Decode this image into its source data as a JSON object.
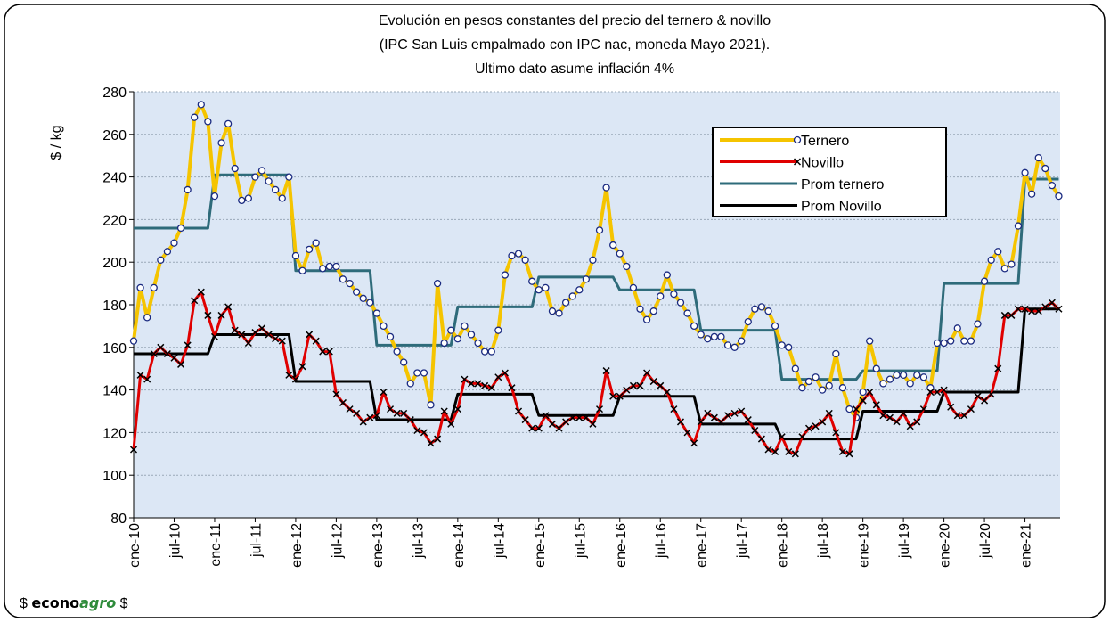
{
  "chart_data": {
    "type": "line",
    "title": "Evolución en pesos constantes del precio del ternero & novillo",
    "subtitle": [
      "(IPC San Luis empalmado con IPC nac, moneda Mayo 2021).",
      "Ultimo dato asume inflación 4%"
    ],
    "y_label": "$ / kg",
    "logo": {
      "prefix": "$",
      "brand": "econo",
      "accent": "agro",
      "suffix": "$"
    },
    "legend": "upper right",
    "ylim": [
      80,
      280
    ],
    "yticks": [
      80,
      100,
      120,
      140,
      160,
      180,
      200,
      220,
      240,
      260,
      280
    ],
    "grid": true,
    "categories": [
      "ene-10",
      null,
      null,
      null,
      null,
      null,
      "jul-10",
      null,
      null,
      null,
      null,
      null,
      "ene-11",
      null,
      null,
      null,
      null,
      null,
      "jul-11",
      null,
      null,
      null,
      null,
      null,
      "ene-12",
      null,
      null,
      null,
      null,
      null,
      "jul-12",
      null,
      null,
      null,
      null,
      null,
      "ene-13",
      null,
      null,
      null,
      null,
      null,
      "jul-13",
      null,
      null,
      null,
      null,
      null,
      "ene-14",
      null,
      null,
      null,
      null,
      null,
      "jul-14",
      null,
      null,
      null,
      null,
      null,
      "ene-15",
      null,
      null,
      null,
      null,
      null,
      "jul-15",
      null,
      null,
      null,
      null,
      null,
      "ene-16",
      null,
      null,
      null,
      null,
      null,
      "jul-16",
      null,
      null,
      null,
      null,
      null,
      "ene-17",
      null,
      null,
      null,
      null,
      null,
      "jul-17",
      null,
      null,
      null,
      null,
      null,
      "ene-18",
      null,
      null,
      null,
      null,
      null,
      "jul-18",
      null,
      null,
      null,
      null,
      null,
      "ene-19",
      null,
      null,
      null,
      null,
      null,
      "jul-19",
      null,
      null,
      null,
      null,
      null,
      "ene-20",
      null,
      null,
      null,
      null,
      null,
      "jul-20",
      null,
      null,
      null,
      null,
      null,
      "ene-21",
      null,
      null,
      null,
      null,
      null
    ],
    "series": [
      {
        "name": "Ternero",
        "color": "#f5c400",
        "marker": "circle",
        "values": [
          163,
          188,
          174,
          188,
          201,
          205,
          209,
          216,
          234,
          268,
          274,
          266,
          231,
          256,
          265,
          244,
          229,
          230,
          240,
          243,
          238,
          234,
          230,
          240,
          203,
          196,
          206,
          209,
          197,
          198,
          198,
          192,
          190,
          186,
          183,
          181,
          176,
          170,
          165,
          158,
          153,
          143,
          148,
          148,
          133,
          190,
          162,
          168,
          164,
          170,
          166,
          162,
          158,
          158,
          168,
          194,
          203,
          204,
          201,
          191,
          187,
          188,
          177,
          176,
          181,
          184,
          187,
          192,
          201,
          215,
          235,
          208,
          204,
          198,
          188,
          178,
          173,
          177,
          184,
          194,
          185,
          181,
          176,
          170,
          166,
          164,
          165,
          165,
          161,
          160,
          163,
          172,
          178,
          179,
          177,
          170,
          161,
          160,
          150,
          141,
          144,
          146,
          140,
          142,
          157,
          141,
          131,
          127,
          139,
          163,
          150,
          143,
          145,
          147,
          147,
          143,
          147,
          146,
          141,
          162,
          162,
          163,
          169,
          163,
          163,
          171,
          191,
          201,
          205,
          197,
          199,
          217,
          242,
          232,
          249,
          244,
          236,
          231
        ]
      },
      {
        "name": "Novillo",
        "color": "#e00000",
        "marker": "x",
        "values": [
          112,
          147,
          145,
          157,
          160,
          157,
          155,
          152,
          161,
          182,
          186,
          175,
          165,
          175,
          179,
          168,
          166,
          162,
          167,
          169,
          166,
          164,
          163,
          147,
          145,
          151,
          166,
          163,
          158,
          158,
          138,
          134,
          131,
          129,
          125,
          127,
          128,
          139,
          131,
          129,
          129,
          126,
          121,
          120,
          115,
          117,
          130,
          124,
          131,
          145,
          143,
          143,
          142,
          141,
          146,
          148,
          141,
          130,
          126,
          122,
          122,
          128,
          124,
          122,
          125,
          127,
          127,
          127,
          124,
          131,
          149,
          137,
          137,
          140,
          142,
          142,
          148,
          144,
          142,
          139,
          131,
          125,
          120,
          115,
          125,
          129,
          127,
          125,
          128,
          129,
          130,
          126,
          121,
          117,
          112,
          111,
          118,
          111,
          110,
          118,
          122,
          123,
          125,
          129,
          120,
          111,
          110,
          131,
          135,
          139,
          133,
          128,
          127,
          125,
          129,
          123,
          125,
          131,
          139,
          139,
          140,
          132,
          128,
          128,
          131,
          137,
          135,
          138,
          150,
          175,
          175,
          178,
          178,
          177,
          177,
          179,
          181,
          178
        ]
      },
      {
        "name": "Prom ternero",
        "color": "#2e6b7a",
        "values": [
          216,
          216,
          216,
          216,
          216,
          216,
          216,
          216,
          216,
          216,
          216,
          216,
          241,
          241,
          241,
          241,
          241,
          241,
          241,
          241,
          241,
          241,
          241,
          241,
          196,
          196,
          196,
          196,
          196,
          196,
          196,
          196,
          196,
          196,
          196,
          196,
          161,
          161,
          161,
          161,
          161,
          161,
          161,
          161,
          161,
          161,
          161,
          161,
          179,
          179,
          179,
          179,
          179,
          179,
          179,
          179,
          179,
          179,
          179,
          179,
          193,
          193,
          193,
          193,
          193,
          193,
          193,
          193,
          193,
          193,
          193,
          193,
          187,
          187,
          187,
          187,
          187,
          187,
          187,
          187,
          187,
          187,
          187,
          187,
          168,
          168,
          168,
          168,
          168,
          168,
          168,
          168,
          168,
          168,
          168,
          168,
          145,
          145,
          145,
          145,
          145,
          145,
          145,
          145,
          145,
          145,
          145,
          145,
          149,
          149,
          149,
          149,
          149,
          149,
          149,
          149,
          149,
          149,
          149,
          149,
          190,
          190,
          190,
          190,
          190,
          190,
          190,
          190,
          190,
          190,
          190,
          190,
          239,
          239,
          239,
          239,
          239,
          239
        ]
      },
      {
        "name": "Prom Novillo",
        "color": "#000000",
        "values": [
          157,
          157,
          157,
          157,
          157,
          157,
          157,
          157,
          157,
          157,
          157,
          157,
          166,
          166,
          166,
          166,
          166,
          166,
          166,
          166,
          166,
          166,
          166,
          166,
          144,
          144,
          144,
          144,
          144,
          144,
          144,
          144,
          144,
          144,
          144,
          144,
          126,
          126,
          126,
          126,
          126,
          126,
          126,
          126,
          126,
          126,
          126,
          126,
          138,
          138,
          138,
          138,
          138,
          138,
          138,
          138,
          138,
          138,
          138,
          138,
          128,
          128,
          128,
          128,
          128,
          128,
          128,
          128,
          128,
          128,
          128,
          128,
          137,
          137,
          137,
          137,
          137,
          137,
          137,
          137,
          137,
          137,
          137,
          137,
          124,
          124,
          124,
          124,
          124,
          124,
          124,
          124,
          124,
          124,
          124,
          124,
          117,
          117,
          117,
          117,
          117,
          117,
          117,
          117,
          117,
          117,
          117,
          117,
          130,
          130,
          130,
          130,
          130,
          130,
          130,
          130,
          130,
          130,
          130,
          130,
          139,
          139,
          139,
          139,
          139,
          139,
          139,
          139,
          139,
          139,
          139,
          139,
          178,
          178,
          178,
          178,
          178,
          178
        ]
      }
    ]
  }
}
